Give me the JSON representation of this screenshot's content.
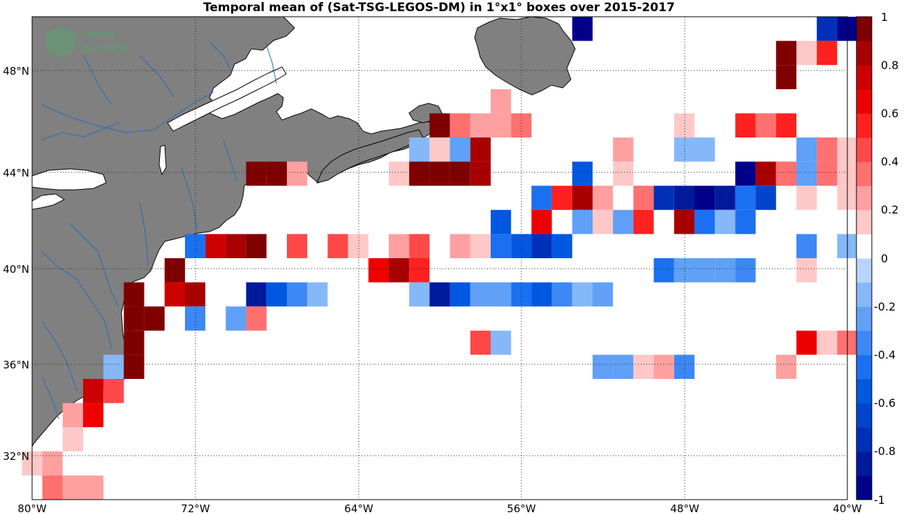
{
  "title": "Temporal mean of (Sat-TSG-LEGOS-DM) in 1°x1° boxes over 2015-2017",
  "logo": {
    "line1": "smos",
    "line2": "pi-mep"
  },
  "x_ticks": [
    "80°W",
    "72°W",
    "64°W",
    "56°W",
    "48°W",
    "40°W"
  ],
  "y_ticks": [
    "48°N",
    "44°N",
    "40°N",
    "36°N",
    "32°N"
  ],
  "colorbar": {
    "ticks": [
      "1",
      "0.8",
      "0.6",
      "0.4",
      "0.2",
      "0",
      "-0.2",
      "-0.4",
      "-0.6",
      "-0.8",
      "-1"
    ],
    "range": [
      -1,
      1
    ],
    "levels": 20,
    "colors": [
      "#00008b",
      "#001a9e",
      "#0030b8",
      "#0044cc",
      "#0058e0",
      "#1a70f0",
      "#3d88f5",
      "#60a0f7",
      "#85b8f8",
      "#b8d4fa",
      "#ffffff",
      "#ffc8c8",
      "#ffa0a0",
      "#ff7070",
      "#ff4848",
      "#ff2020",
      "#ee0000",
      "#cc0000",
      "#a80000",
      "#7f0000"
    ]
  },
  "chart_data": {
    "type": "heatmap",
    "title": "Temporal mean of (Sat-TSG-LEGOS-DM) in 1°x1° boxes over 2015-2017",
    "xlabel": "",
    "ylabel": "",
    "xlim": [
      -80,
      -40
    ],
    "ylim": [
      30,
      50
    ],
    "cell_size_deg": 1,
    "x_ticks": [
      "80°W",
      "72°W",
      "64°W",
      "56°W",
      "48°W",
      "40°W"
    ],
    "y_ticks": [
      "48°N",
      "44°N",
      "40°N",
      "36°N",
      "32°N"
    ],
    "colorbar_range": [
      -1,
      1
    ],
    "cells": [
      {
        "lon": -53,
        "lat": 49.5,
        "v": -0.95
      },
      {
        "lon": -41,
        "lat": 49.5,
        "v": -0.75
      },
      {
        "lon": -40,
        "lat": 49.5,
        "v": -0.95
      },
      {
        "lon": -43,
        "lat": 48.5,
        "v": 0.95
      },
      {
        "lon": -42,
        "lat": 48.5,
        "v": 0.15
      },
      {
        "lon": -41,
        "lat": 48.5,
        "v": 0.55
      },
      {
        "lon": -43,
        "lat": 47.5,
        "v": 0.95
      },
      {
        "lon": -57,
        "lat": 46.5,
        "v": 0.25
      },
      {
        "lon": -60,
        "lat": 45.5,
        "v": 0.95
      },
      {
        "lon": -59,
        "lat": 45.5,
        "v": 0.35
      },
      {
        "lon": -58,
        "lat": 45.5,
        "v": 0.25
      },
      {
        "lon": -57,
        "lat": 45.5,
        "v": 0.25
      },
      {
        "lon": -56,
        "lat": 45.5,
        "v": 0.35
      },
      {
        "lon": -48,
        "lat": 45.5,
        "v": 0.15
      },
      {
        "lon": -45,
        "lat": 45.5,
        "v": 0.55
      },
      {
        "lon": -44,
        "lat": 45.5,
        "v": 0.35
      },
      {
        "lon": -43,
        "lat": 45.5,
        "v": 0.55
      },
      {
        "lon": -61,
        "lat": 44.5,
        "v": -0.15
      },
      {
        "lon": -60,
        "lat": 44.5,
        "v": 0.15
      },
      {
        "lon": -59,
        "lat": 44.5,
        "v": -0.25
      },
      {
        "lon": -58,
        "lat": 44.5,
        "v": 0.85
      },
      {
        "lon": -51,
        "lat": 44.5,
        "v": 0.25
      },
      {
        "lon": -48,
        "lat": 44.5,
        "v": -0.15
      },
      {
        "lon": -47,
        "lat": 44.5,
        "v": -0.15
      },
      {
        "lon": -42,
        "lat": 44.5,
        "v": -0.25
      },
      {
        "lon": -41,
        "lat": 44.5,
        "v": 0.35
      },
      {
        "lon": -40,
        "lat": 44.5,
        "v": 0.15
      },
      {
        "lon": -69,
        "lat": 43.5,
        "v": 0.95
      },
      {
        "lon": -68,
        "lat": 43.5,
        "v": 0.95
      },
      {
        "lon": -67,
        "lat": 43.5,
        "v": 0.25
      },
      {
        "lon": -62,
        "lat": 43.5,
        "v": 0.15
      },
      {
        "lon": -61,
        "lat": 43.5,
        "v": 0.95
      },
      {
        "lon": -60,
        "lat": 43.5,
        "v": 0.95
      },
      {
        "lon": -59,
        "lat": 43.5,
        "v": 0.95
      },
      {
        "lon": -58,
        "lat": 43.5,
        "v": 0.85
      },
      {
        "lon": -53,
        "lat": 43.5,
        "v": -0.55
      },
      {
        "lon": -51,
        "lat": 43.5,
        "v": 0.15
      },
      {
        "lon": -45,
        "lat": 43.5,
        "v": -0.95
      },
      {
        "lon": -44,
        "lat": 43.5,
        "v": 0.85
      },
      {
        "lon": -43,
        "lat": 43.5,
        "v": 0.35
      },
      {
        "lon": -42,
        "lat": 43.5,
        "v": -0.25
      },
      {
        "lon": -41,
        "lat": 43.5,
        "v": 0.35
      },
      {
        "lon": -40,
        "lat": 43.5,
        "v": 0.15
      },
      {
        "lon": -55,
        "lat": 42.5,
        "v": -0.45
      },
      {
        "lon": -54,
        "lat": 42.5,
        "v": 0.55
      },
      {
        "lon": -53,
        "lat": 42.5,
        "v": 0.85
      },
      {
        "lon": -52,
        "lat": 42.5,
        "v": 0.25
      },
      {
        "lon": -50,
        "lat": 42.5,
        "v": 0.35
      },
      {
        "lon": -49,
        "lat": 42.5,
        "v": -0.75
      },
      {
        "lon": -48,
        "lat": 42.5,
        "v": -0.85
      },
      {
        "lon": -47,
        "lat": 42.5,
        "v": -0.95
      },
      {
        "lon": -46,
        "lat": 42.5,
        "v": -0.85
      },
      {
        "lon": -45,
        "lat": 42.5,
        "v": -0.45
      },
      {
        "lon": -44,
        "lat": 42.5,
        "v": -0.65
      },
      {
        "lon": -42,
        "lat": 42.5,
        "v": 0.15
      },
      {
        "lon": -40,
        "lat": 42.5,
        "v": 0.15
      },
      {
        "lon": -57,
        "lat": 41.5,
        "v": -0.55
      },
      {
        "lon": -55,
        "lat": 41.5,
        "v": 0.65
      },
      {
        "lon": -53,
        "lat": 41.5,
        "v": -0.25
      },
      {
        "lon": -52,
        "lat": 41.5,
        "v": 0.15
      },
      {
        "lon": -51,
        "lat": 41.5,
        "v": -0.25
      },
      {
        "lon": -50,
        "lat": 41.5,
        "v": 0.55
      },
      {
        "lon": -48,
        "lat": 41.5,
        "v": 0.85
      },
      {
        "lon": -47,
        "lat": 41.5,
        "v": -0.45
      },
      {
        "lon": -46,
        "lat": 41.5,
        "v": -0.15
      },
      {
        "lon": -45,
        "lat": 41.5,
        "v": -0.45
      },
      {
        "lon": -72,
        "lat": 40.5,
        "v": -0.45
      },
      {
        "lon": -71,
        "lat": 40.5,
        "v": 0.75
      },
      {
        "lon": -70,
        "lat": 40.5,
        "v": 0.85
      },
      {
        "lon": -69,
        "lat": 40.5,
        "v": 0.95
      },
      {
        "lon": -67,
        "lat": 40.5,
        "v": 0.45
      },
      {
        "lon": -65,
        "lat": 40.5,
        "v": 0.45
      },
      {
        "lon": -64,
        "lat": 40.5,
        "v": 0.15
      },
      {
        "lon": -62,
        "lat": 40.5,
        "v": 0.25
      },
      {
        "lon": -61,
        "lat": 40.5,
        "v": 0.45
      },
      {
        "lon": -59,
        "lat": 40.5,
        "v": 0.25
      },
      {
        "lon": -58,
        "lat": 40.5,
        "v": 0.15
      },
      {
        "lon": -57,
        "lat": 40.5,
        "v": -0.45
      },
      {
        "lon": -56,
        "lat": 40.5,
        "v": -0.55
      },
      {
        "lon": -55,
        "lat": 40.5,
        "v": -0.75
      },
      {
        "lon": -54,
        "lat": 40.5,
        "v": -0.55
      },
      {
        "lon": -42,
        "lat": 40.5,
        "v": -0.35
      },
      {
        "lon": -40,
        "lat": 40.5,
        "v": -0.15
      },
      {
        "lon": -73,
        "lat": 39.5,
        "v": 0.95
      },
      {
        "lon": -63,
        "lat": 39.5,
        "v": 0.65
      },
      {
        "lon": -62,
        "lat": 39.5,
        "v": 0.85
      },
      {
        "lon": -61,
        "lat": 39.5,
        "v": 0.55
      },
      {
        "lon": -49,
        "lat": 39.5,
        "v": -0.45
      },
      {
        "lon": -48,
        "lat": 39.5,
        "v": -0.25
      },
      {
        "lon": -47,
        "lat": 39.5,
        "v": -0.25
      },
      {
        "lon": -46,
        "lat": 39.5,
        "v": -0.25
      },
      {
        "lon": -45,
        "lat": 39.5,
        "v": -0.35
      },
      {
        "lon": -42,
        "lat": 39.5,
        "v": 0.15
      },
      {
        "lon": -75,
        "lat": 38.5,
        "v": 0.95
      },
      {
        "lon": -73,
        "lat": 38.5,
        "v": 0.75
      },
      {
        "lon": -72,
        "lat": 38.5,
        "v": 0.85
      },
      {
        "lon": -69,
        "lat": 38.5,
        "v": -0.85
      },
      {
        "lon": -68,
        "lat": 38.5,
        "v": -0.55
      },
      {
        "lon": -67,
        "lat": 38.5,
        "v": -0.35
      },
      {
        "lon": -66,
        "lat": 38.5,
        "v": -0.15
      },
      {
        "lon": -61,
        "lat": 38.5,
        "v": -0.15
      },
      {
        "lon": -60,
        "lat": 38.5,
        "v": -0.85
      },
      {
        "lon": -59,
        "lat": 38.5,
        "v": -0.55
      },
      {
        "lon": -58,
        "lat": 38.5,
        "v": -0.25
      },
      {
        "lon": -57,
        "lat": 38.5,
        "v": -0.25
      },
      {
        "lon": -56,
        "lat": 38.5,
        "v": -0.45
      },
      {
        "lon": -55,
        "lat": 38.5,
        "v": -0.55
      },
      {
        "lon": -54,
        "lat": 38.5,
        "v": -0.35
      },
      {
        "lon": -53,
        "lat": 38.5,
        "v": -0.15
      },
      {
        "lon": -52,
        "lat": 38.5,
        "v": -0.25
      },
      {
        "lon": -75,
        "lat": 37.5,
        "v": 0.95
      },
      {
        "lon": -74,
        "lat": 37.5,
        "v": 0.95
      },
      {
        "lon": -72,
        "lat": 37.5,
        "v": -0.35
      },
      {
        "lon": -70,
        "lat": 37.5,
        "v": -0.25
      },
      {
        "lon": -69,
        "lat": 37.5,
        "v": 0.35
      },
      {
        "lon": -75,
        "lat": 36.5,
        "v": 0.95
      },
      {
        "lon": -58,
        "lat": 36.5,
        "v": 0.45
      },
      {
        "lon": -57,
        "lat": 36.5,
        "v": -0.15
      },
      {
        "lon": -42,
        "lat": 36.5,
        "v": 0.65
      },
      {
        "lon": -41,
        "lat": 36.5,
        "v": 0.15
      },
      {
        "lon": -40,
        "lat": 36.5,
        "v": 0.35
      },
      {
        "lon": -76,
        "lat": 35.5,
        "v": -0.15
      },
      {
        "lon": -75,
        "lat": 35.5,
        "v": 0.95
      },
      {
        "lon": -52,
        "lat": 35.5,
        "v": -0.25
      },
      {
        "lon": -51,
        "lat": 35.5,
        "v": -0.25
      },
      {
        "lon": -50,
        "lat": 35.5,
        "v": 0.15
      },
      {
        "lon": -49,
        "lat": 35.5,
        "v": 0.25
      },
      {
        "lon": -48,
        "lat": 35.5,
        "v": -0.35
      },
      {
        "lon": -43,
        "lat": 35.5,
        "v": 0.25
      },
      {
        "lon": -77,
        "lat": 34.5,
        "v": 0.75
      },
      {
        "lon": -76,
        "lat": 34.5,
        "v": 0.45
      },
      {
        "lon": -78,
        "lat": 33.5,
        "v": 0.25
      },
      {
        "lon": -77,
        "lat": 33.5,
        "v": 0.65
      },
      {
        "lon": -78,
        "lat": 32.5,
        "v": 0.15
      },
      {
        "lon": -80,
        "lat": 31.5,
        "v": 0.15
      },
      {
        "lon": -79,
        "lat": 31.5,
        "v": 0.25
      },
      {
        "lon": -79,
        "lat": 30.5,
        "v": 0.35
      },
      {
        "lon": -78,
        "lat": 30.5,
        "v": 0.25
      },
      {
        "lon": -77,
        "lat": 30.5,
        "v": 0.25
      }
    ]
  }
}
